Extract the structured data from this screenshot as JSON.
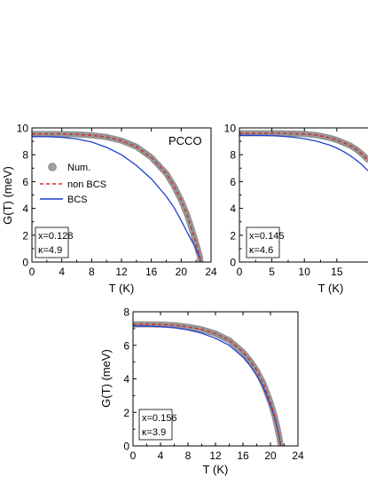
{
  "figure": {
    "label_PCCO": "PCCO"
  },
  "chart_data": [
    {
      "type": "line",
      "panel": "top-left",
      "title": "",
      "xlabel": "T (K)",
      "ylabel": "G(T) (meV)",
      "xlim": [
        0,
        24
      ],
      "ylim": [
        0,
        10
      ],
      "xticks": [
        0,
        4,
        8,
        12,
        16,
        20,
        24
      ],
      "yticks": [
        0,
        2,
        4,
        6,
        8,
        10
      ],
      "grid": false,
      "legend_position": "left",
      "annotation": "PCCO",
      "textbox": [
        "x=0.128",
        "κ=4.9"
      ],
      "series": [
        {
          "name": "Num.",
          "style": "circles",
          "color": "#9e9e9e",
          "x": [
            0,
            2,
            4,
            6,
            8,
            10,
            12,
            14,
            16,
            18,
            19,
            20,
            20.8,
            21.5,
            22,
            22.3,
            22.5,
            22.6
          ],
          "values": [
            9.55,
            9.55,
            9.54,
            9.52,
            9.45,
            9.32,
            9.05,
            8.6,
            7.8,
            6.6,
            5.7,
            4.6,
            3.5,
            2.3,
            1.4,
            0.8,
            0.4,
            0.0
          ]
        },
        {
          "name": "non BCS",
          "style": "dashed",
          "color": "#d32f2f",
          "x": [
            0,
            2,
            4,
            6,
            8,
            10,
            12,
            14,
            16,
            18,
            19,
            20,
            20.8,
            21.5,
            22,
            22.3,
            22.5,
            22.6
          ],
          "values": [
            9.55,
            9.55,
            9.54,
            9.52,
            9.45,
            9.32,
            9.05,
            8.6,
            7.8,
            6.6,
            5.7,
            4.6,
            3.5,
            2.3,
            1.4,
            0.8,
            0.4,
            0.0
          ]
        },
        {
          "name": "BCS",
          "style": "solid",
          "color": "#1f3fd0",
          "x": [
            0,
            2,
            4,
            6,
            8,
            10,
            12,
            14,
            16,
            18,
            19,
            20,
            21,
            21.8,
            22.2,
            22.5,
            22.6
          ],
          "values": [
            9.35,
            9.35,
            9.3,
            9.18,
            8.95,
            8.55,
            8.0,
            7.2,
            6.2,
            4.9,
            4.1,
            3.1,
            2.0,
            1.2,
            0.7,
            0.3,
            0.0
          ]
        }
      ]
    },
    {
      "type": "line",
      "panel": "top-right",
      "title": "",
      "xlabel": "T (K)",
      "ylabel": "",
      "xlim": [
        0,
        19.8
      ],
      "ylim": [
        0,
        10
      ],
      "xticks": [
        0,
        5,
        10,
        15
      ],
      "xtick_labels": [
        "0",
        "5",
        "10",
        "15"
      ],
      "yticks": [
        0,
        2,
        4,
        6,
        8,
        10
      ],
      "grid": false,
      "textbox": [
        "x=0.145",
        "κ=4.6"
      ],
      "series": [
        {
          "name": "Num.",
          "style": "circles",
          "color": "#9e9e9e",
          "x": [
            0,
            2,
            4,
            6,
            8,
            10,
            12,
            14,
            15,
            16,
            17,
            18,
            19,
            19.8
          ],
          "values": [
            9.6,
            9.6,
            9.6,
            9.6,
            9.58,
            9.55,
            9.45,
            9.25,
            9.1,
            8.9,
            8.7,
            8.4,
            8.0,
            7.6
          ]
        },
        {
          "name": "non BCS",
          "style": "dashed",
          "color": "#d32f2f",
          "x": [
            0,
            2,
            4,
            6,
            8,
            10,
            12,
            14,
            15,
            16,
            17,
            18,
            19,
            19.8
          ],
          "values": [
            9.6,
            9.6,
            9.6,
            9.6,
            9.58,
            9.55,
            9.45,
            9.25,
            9.1,
            8.9,
            8.7,
            8.4,
            8.0,
            7.6
          ]
        },
        {
          "name": "BCS",
          "style": "solid",
          "color": "#1f3fd0",
          "x": [
            0,
            2,
            4,
            6,
            8,
            10,
            12,
            14,
            15,
            16,
            17,
            18,
            19,
            19.8
          ],
          "values": [
            9.45,
            9.45,
            9.44,
            9.4,
            9.32,
            9.2,
            9.0,
            8.7,
            8.5,
            8.25,
            7.95,
            7.6,
            7.2,
            6.8
          ]
        }
      ]
    },
    {
      "type": "line",
      "panel": "bottom",
      "title": "",
      "xlabel": "T (K)",
      "ylabel": "G(T) (meV)",
      "xlim": [
        0,
        24
      ],
      "ylim": [
        0,
        8
      ],
      "xticks": [
        0,
        4,
        8,
        12,
        16,
        20,
        24
      ],
      "yticks": [
        0,
        2,
        4,
        6,
        8
      ],
      "grid": false,
      "textbox": [
        "x=0.156",
        "κ=3.9"
      ],
      "series": [
        {
          "name": "Num.",
          "style": "circles",
          "color": "#9e9e9e",
          "x": [
            0,
            2,
            4,
            6,
            8,
            10,
            12,
            14,
            16,
            17,
            18,
            19,
            20,
            20.6,
            21,
            21.3,
            21.5
          ],
          "values": [
            7.25,
            7.25,
            7.24,
            7.2,
            7.1,
            6.95,
            6.7,
            6.3,
            5.6,
            5.1,
            4.5,
            3.7,
            2.6,
            1.8,
            1.1,
            0.5,
            0.0
          ]
        },
        {
          "name": "non BCS",
          "style": "dashed",
          "color": "#d32f2f",
          "x": [
            0,
            2,
            4,
            6,
            8,
            10,
            12,
            14,
            16,
            17,
            18,
            19,
            20,
            20.6,
            21,
            21.3,
            21.5
          ],
          "values": [
            7.25,
            7.25,
            7.24,
            7.2,
            7.1,
            6.95,
            6.7,
            6.3,
            5.6,
            5.1,
            4.5,
            3.7,
            2.6,
            1.8,
            1.1,
            0.5,
            0.0
          ]
        },
        {
          "name": "BCS",
          "style": "solid",
          "color": "#1f3fd0",
          "x": [
            0,
            2,
            4,
            6,
            8,
            10,
            12,
            14,
            16,
            17,
            18,
            19,
            20,
            20.6,
            21,
            21.3,
            21.5
          ],
          "values": [
            7.15,
            7.15,
            7.12,
            7.05,
            6.92,
            6.72,
            6.42,
            6.0,
            5.3,
            4.8,
            4.2,
            3.45,
            2.45,
            1.7,
            1.05,
            0.45,
            0.0
          ]
        }
      ]
    }
  ]
}
